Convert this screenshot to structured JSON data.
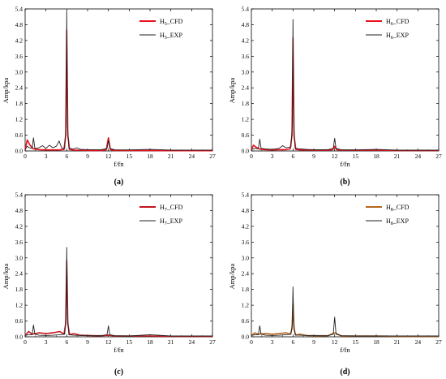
{
  "chart_data": [
    {
      "type": "line",
      "panel_label": "(a)",
      "xlabel": "f/fn",
      "ylabel": "Amp/kpa",
      "xlim": [
        0,
        27
      ],
      "ylim": [
        0,
        5.4
      ],
      "xticks": [
        "0",
        "3",
        "6",
        "9",
        "12",
        "15",
        "18",
        "21",
        "24",
        "27"
      ],
      "yticks": [
        "0.0",
        "0.6",
        "1.2",
        "1.8",
        "2.4",
        "3.0",
        "3.6",
        "4.2",
        "4.8",
        "5.4"
      ],
      "legend_position": "top-right",
      "series": [
        {
          "name": "H5_CFD",
          "label_base": "H",
          "label_sub": "5",
          "label_suffix": "_CFD",
          "color": "#e8101c",
          "x": [
            0,
            0.3,
            0.7,
            1.2,
            2,
            3,
            4,
            5,
            5.6,
            5.85,
            6,
            6.15,
            6.4,
            7,
            8,
            9,
            10,
            11,
            11.7,
            11.9,
            12,
            12.1,
            12.3,
            13,
            15,
            18,
            21,
            24,
            27
          ],
          "y": [
            0.05,
            0.42,
            0.22,
            0.08,
            0.05,
            0.04,
            0.04,
            0.04,
            0.06,
            0.6,
            4.6,
            0.6,
            0.06,
            0.03,
            0.03,
            0.02,
            0.02,
            0.02,
            0.05,
            0.35,
            0.5,
            0.35,
            0.05,
            0.02,
            0.02,
            0.02,
            0.01,
            0.01,
            0.01
          ]
        },
        {
          "name": "H5_EXP",
          "label_base": "H",
          "label_sub": "5",
          "label_suffix": "_EXP",
          "color": "#222222",
          "x": [
            0,
            0.3,
            0.6,
            1,
            1.2,
            1.4,
            2,
            2.5,
            3,
            3.5,
            4,
            4.5,
            4.9,
            5.3,
            5.7,
            5.9,
            6,
            6.1,
            6.3,
            7,
            7.5,
            8,
            9,
            10,
            11,
            11.8,
            12,
            12.2,
            13,
            15,
            18,
            21,
            24,
            27
          ],
          "y": [
            0.05,
            0.18,
            0.12,
            0.1,
            0.5,
            0.1,
            0.12,
            0.2,
            0.1,
            0.22,
            0.12,
            0.18,
            0.38,
            0.1,
            0.1,
            1.0,
            5.3,
            1.0,
            0.1,
            0.08,
            0.12,
            0.06,
            0.05,
            0.05,
            0.05,
            0.1,
            0.4,
            0.1,
            0.04,
            0.04,
            0.06,
            0.03,
            0.03,
            0.03
          ]
        }
      ]
    },
    {
      "type": "line",
      "panel_label": "(b)",
      "xlabel": "f/fn",
      "ylabel": "Amp/kpa",
      "xlim": [
        0,
        27
      ],
      "ylim": [
        0,
        5.4
      ],
      "xticks": [
        "0",
        "3",
        "6",
        "9",
        "12",
        "15",
        "18",
        "21",
        "24",
        "27"
      ],
      "yticks": [
        "0.0",
        "0.6",
        "1.2",
        "1.8",
        "2.4",
        "3.0",
        "3.6",
        "4.2",
        "4.8",
        "5.4"
      ],
      "legend_position": "top-right",
      "series": [
        {
          "name": "H6_CFD",
          "label_base": "H",
          "label_sub": "6",
          "label_suffix": "_CFD",
          "color": "#e8101c",
          "x": [
            0,
            0.3,
            0.7,
            1.2,
            2,
            3,
            4,
            5,
            5.6,
            5.85,
            6,
            6.15,
            6.4,
            7,
            8,
            9,
            10,
            11,
            11.7,
            11.9,
            12,
            12.1,
            12.3,
            13,
            15,
            18,
            21,
            24,
            27
          ],
          "y": [
            0.05,
            0.22,
            0.14,
            0.07,
            0.05,
            0.04,
            0.05,
            0.05,
            0.08,
            0.6,
            4.3,
            0.6,
            0.06,
            0.04,
            0.04,
            0.03,
            0.03,
            0.03,
            0.05,
            0.12,
            0.18,
            0.12,
            0.05,
            0.03,
            0.03,
            0.03,
            0.02,
            0.02,
            0.02
          ]
        },
        {
          "name": "H6_EXP",
          "label_base": "H",
          "label_sub": "6",
          "label_suffix": "_EXP",
          "color": "#222222",
          "x": [
            0,
            0.5,
            1,
            1.2,
            1.4,
            2,
            3,
            4,
            4.5,
            5,
            5.7,
            5.9,
            6,
            6.1,
            6.3,
            7,
            8,
            9,
            10,
            11,
            11.8,
            12,
            12.2,
            13,
            15,
            18,
            21,
            24,
            27
          ],
          "y": [
            0.05,
            0.1,
            0.08,
            0.45,
            0.1,
            0.08,
            0.06,
            0.1,
            0.2,
            0.12,
            0.15,
            1.0,
            5.0,
            1.0,
            0.1,
            0.08,
            0.06,
            0.05,
            0.05,
            0.05,
            0.1,
            0.48,
            0.1,
            0.04,
            0.04,
            0.06,
            0.03,
            0.03,
            0.03
          ]
        }
      ]
    },
    {
      "type": "line",
      "panel_label": "(c)",
      "xlabel": "f/fn",
      "ylabel": "Amp/kpa",
      "xlim": [
        0,
        27
      ],
      "ylim": [
        0,
        5.4
      ],
      "xticks": [
        "0",
        "3",
        "6",
        "9",
        "12",
        "15",
        "18",
        "21",
        "24",
        "27"
      ],
      "yticks": [
        "0.0",
        "0.6",
        "1.2",
        "1.8",
        "2.4",
        "3.0",
        "3.6",
        "4.2",
        "4.8",
        "5.4"
      ],
      "legend_position": "top-right",
      "series": [
        {
          "name": "H7_CFD",
          "label_base": "H",
          "label_sub": "7",
          "label_suffix": "_CFD",
          "color": "#c4151c",
          "x": [
            0,
            0.5,
            1,
            2,
            3,
            4,
            5,
            5.6,
            5.85,
            6,
            6.15,
            6.4,
            7,
            8,
            9,
            10,
            11,
            12,
            13,
            15,
            18,
            21,
            24,
            27
          ],
          "y": [
            0.05,
            0.2,
            0.1,
            0.15,
            0.12,
            0.15,
            0.2,
            0.1,
            0.5,
            2.9,
            0.5,
            0.08,
            0.12,
            0.06,
            0.05,
            0.04,
            0.04,
            0.06,
            0.03,
            0.03,
            0.03,
            0.02,
            0.02,
            0.02
          ]
        },
        {
          "name": "H7_EXP",
          "label_base": "H",
          "label_sub": "7",
          "label_suffix": "_EXP",
          "color": "#222222",
          "x": [
            0,
            0.5,
            1,
            1.2,
            1.4,
            2,
            3,
            4,
            5,
            5.7,
            5.9,
            6,
            6.1,
            6.3,
            7,
            8,
            9,
            10,
            11,
            11.8,
            12,
            12.2,
            13,
            15,
            18,
            21,
            24,
            27
          ],
          "y": [
            0.05,
            0.08,
            0.08,
            0.45,
            0.1,
            0.06,
            0.05,
            0.06,
            0.08,
            0.1,
            0.8,
            3.4,
            0.8,
            0.08,
            0.06,
            0.05,
            0.05,
            0.04,
            0.04,
            0.08,
            0.42,
            0.08,
            0.04,
            0.03,
            0.08,
            0.03,
            0.03,
            0.03
          ]
        }
      ]
    },
    {
      "type": "line",
      "panel_label": "(d)",
      "xlabel": "f/fn",
      "ylabel": "Amp/kpa",
      "xlim": [
        0,
        27
      ],
      "ylim": [
        0,
        5.4
      ],
      "xticks": [
        "0",
        "3",
        "6",
        "9",
        "12",
        "15",
        "18",
        "21",
        "24",
        "27"
      ],
      "yticks": [
        "0.0",
        "0.6",
        "1.2",
        "1.8",
        "2.4",
        "3.0",
        "3.6",
        "4.2",
        "4.8",
        "5.4"
      ],
      "legend_position": "top-right",
      "series": [
        {
          "name": "H8_CFD",
          "label_base": "H",
          "label_sub": "8",
          "label_suffix": "_CFD",
          "color": "#b5651d",
          "x": [
            0,
            0.5,
            1,
            2,
            3,
            4,
            5,
            5.6,
            5.85,
            6,
            6.15,
            6.4,
            7,
            8,
            9,
            10,
            11,
            12,
            13,
            15,
            18,
            21,
            24,
            27
          ],
          "y": [
            0.05,
            0.15,
            0.1,
            0.12,
            0.1,
            0.12,
            0.15,
            0.1,
            0.3,
            1.3,
            0.3,
            0.06,
            0.1,
            0.05,
            0.04,
            0.04,
            0.04,
            0.15,
            0.03,
            0.03,
            0.03,
            0.02,
            0.02,
            0.02
          ]
        },
        {
          "name": "H8_EXP",
          "label_base": "H",
          "label_sub": "8",
          "label_suffix": "_EXP",
          "color": "#222222",
          "x": [
            0,
            0.5,
            1,
            1.2,
            1.4,
            2,
            3,
            4,
            5,
            5.7,
            5.9,
            6,
            6.1,
            6.3,
            7,
            8,
            9,
            10,
            11,
            11.8,
            12,
            12.2,
            13,
            15,
            18,
            21,
            24,
            27
          ],
          "y": [
            0.05,
            0.08,
            0.08,
            0.42,
            0.1,
            0.06,
            0.05,
            0.06,
            0.08,
            0.1,
            0.5,
            1.9,
            0.5,
            0.08,
            0.06,
            0.05,
            0.05,
            0.04,
            0.04,
            0.1,
            0.75,
            0.1,
            0.04,
            0.03,
            0.03,
            0.03,
            0.03,
            0.03
          ]
        }
      ]
    }
  ]
}
